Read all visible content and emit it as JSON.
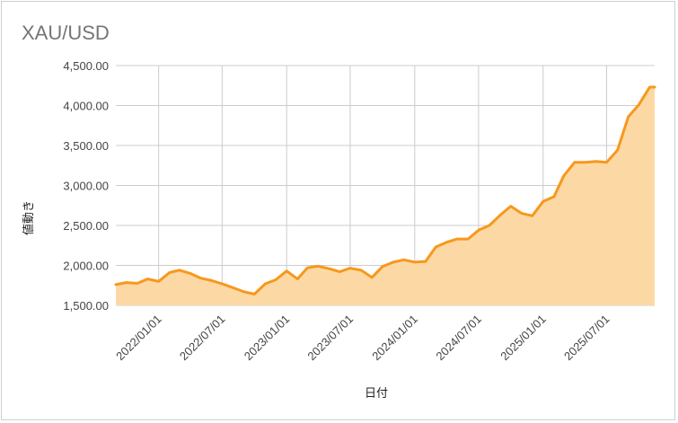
{
  "chart_data": {
    "type": "area",
    "title": "XAU/USD",
    "xlabel": "日付",
    "ylabel": "値動き",
    "ylim": [
      1500,
      4500
    ],
    "xlim": [
      "2021-09-01",
      "2025-11-15"
    ],
    "grid": true,
    "legend": "none",
    "colors": {
      "line": "#f7981d",
      "fill": "#fcd9a4",
      "grid": "#cccccc"
    },
    "y_ticks": [
      {
        "value": 1500,
        "label": "1,500.00"
      },
      {
        "value": 2000,
        "label": "2,000.00"
      },
      {
        "value": 2500,
        "label": "2,500.00"
      },
      {
        "value": 3000,
        "label": "3,000.00"
      },
      {
        "value": 3500,
        "label": "3,500.00"
      },
      {
        "value": 4000,
        "label": "4,000.00"
      },
      {
        "value": 4500,
        "label": "4,500.00"
      }
    ],
    "x_ticks": [
      {
        "value": "2022-01-01",
        "label": "2022/01/01"
      },
      {
        "value": "2022-07-01",
        "label": "2022/07/01"
      },
      {
        "value": "2023-01-01",
        "label": "2023/01/01"
      },
      {
        "value": "2023-07-01",
        "label": "2023/07/01"
      },
      {
        "value": "2024-01-01",
        "label": "2024/01/01"
      },
      {
        "value": "2024-07-01",
        "label": "2024/07/01"
      },
      {
        "value": "2025-01-01",
        "label": "2025/01/01"
      },
      {
        "value": "2025-07-01",
        "label": "2025/07/01"
      }
    ],
    "series": [
      {
        "x": [
          "2021-09-01",
          "2021-10-01",
          "2021-11-01",
          "2021-12-01",
          "2022-01-01",
          "2022-02-01",
          "2022-03-01",
          "2022-04-01",
          "2022-05-01",
          "2022-06-01",
          "2022-07-01",
          "2022-08-01",
          "2022-09-01",
          "2022-10-01",
          "2022-11-01",
          "2022-12-01",
          "2023-01-01",
          "2023-02-01",
          "2023-03-01",
          "2023-04-01",
          "2023-05-01",
          "2023-06-01",
          "2023-07-01",
          "2023-08-01",
          "2023-09-01",
          "2023-10-01",
          "2023-11-01",
          "2023-12-01",
          "2024-01-01",
          "2024-02-01",
          "2024-03-01",
          "2024-04-01",
          "2024-05-01",
          "2024-06-01",
          "2024-07-01",
          "2024-08-01",
          "2024-09-01",
          "2024-10-01",
          "2024-11-01",
          "2024-12-01",
          "2025-01-01",
          "2025-02-01",
          "2025-03-01",
          "2025-04-01",
          "2025-05-01",
          "2025-06-01",
          "2025-07-01",
          "2025-08-01",
          "2025-09-01",
          "2025-10-01",
          "2025-11-01",
          "2025-11-15"
        ],
        "values": [
          1760,
          1785,
          1775,
          1830,
          1800,
          1910,
          1940,
          1900,
          1840,
          1810,
          1770,
          1720,
          1670,
          1640,
          1770,
          1820,
          1930,
          1830,
          1970,
          1990,
          1960,
          1920,
          1965,
          1940,
          1850,
          1985,
          2040,
          2070,
          2040,
          2050,
          2230,
          2290,
          2330,
          2330,
          2440,
          2500,
          2630,
          2740,
          2650,
          2620,
          2800,
          2860,
          3120,
          3290,
          3290,
          3300,
          3290,
          3440,
          3860,
          4010,
          4230,
          4230
        ]
      }
    ]
  }
}
